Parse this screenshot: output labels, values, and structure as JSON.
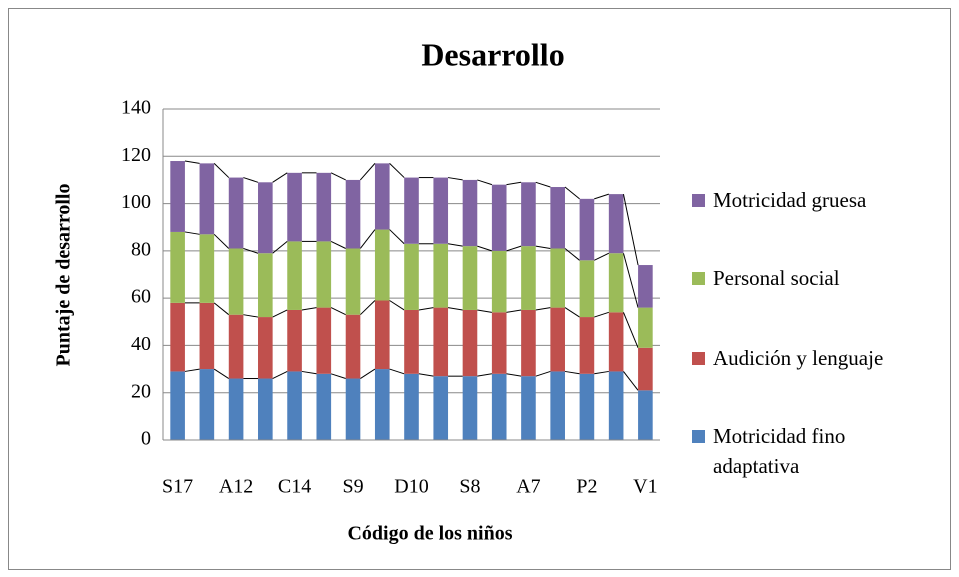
{
  "chart_data": {
    "type": "stacked_bar",
    "title": "Desarrollo",
    "x_label": "Código de los niños",
    "y_label": "Puntaje de desarrollo",
    "categories": [
      "S17",
      null,
      "A12",
      null,
      "C14",
      null,
      "S9",
      null,
      "D10",
      null,
      "S8",
      null,
      "A7",
      null,
      "P2",
      null,
      "V1"
    ],
    "series": [
      {
        "name": "Motricidad fino adaptativa",
        "color": "#4f81bd",
        "values": [
          29,
          30,
          26,
          26,
          29,
          28,
          26,
          30,
          28,
          27,
          27,
          28,
          27,
          29,
          28,
          29,
          21
        ]
      },
      {
        "name": "Audición y lenguaje",
        "color": "#c0504d",
        "values": [
          29,
          28,
          27,
          26,
          26,
          28,
          27,
          29,
          27,
          29,
          28,
          26,
          28,
          27,
          24,
          25,
          18
        ]
      },
      {
        "name": "Personal social",
        "color": "#9bbb59",
        "values": [
          30,
          29,
          28,
          27,
          29,
          28,
          28,
          30,
          28,
          27,
          27,
          26,
          27,
          25,
          24,
          25,
          17
        ]
      },
      {
        "name": "Motricidad gruesa",
        "color": "#8064a2",
        "values": [
          30,
          30,
          30,
          30,
          29,
          29,
          29,
          28,
          28,
          28,
          28,
          28,
          27,
          26,
          26,
          25,
          18
        ]
      }
    ],
    "ylim": [
      0,
      140
    ],
    "yticks": [
      0,
      20,
      40,
      60,
      80,
      100,
      120,
      140
    ],
    "grid": true,
    "legend": "right"
  }
}
